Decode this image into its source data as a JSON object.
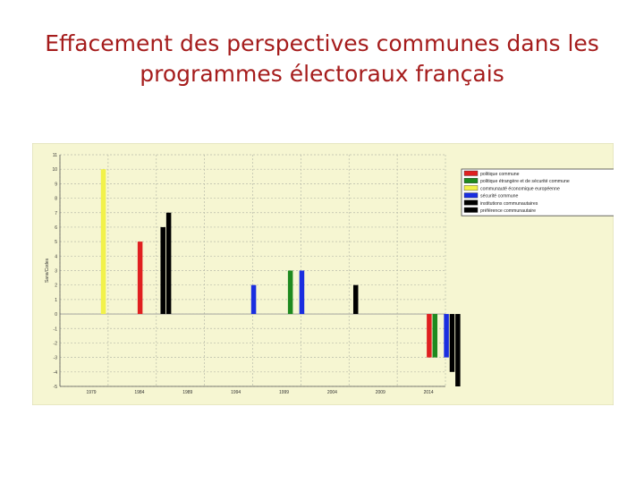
{
  "slide": {
    "title_line1": "Effacement des perspectives communes dans les",
    "title_line2": "programmes électoraux français"
  },
  "chart_data": {
    "type": "bar",
    "ylabel": "Sans/Codes",
    "xlabel": "",
    "ylim": [
      -5,
      11
    ],
    "yticks": [
      11,
      10,
      9,
      8,
      7,
      6,
      5,
      4,
      3,
      2,
      1,
      0,
      -1,
      -2,
      -3,
      -4,
      -5
    ],
    "grid": true,
    "legend_position": "top-right",
    "background_color": "#f6f6d2",
    "categories": [
      "1979",
      "1984",
      "1989",
      "1994",
      "1999",
      "2004",
      "2009",
      "2014"
    ],
    "series": [
      {
        "name": "politique commune",
        "color": "#e02020",
        "values": [
          0,
          5,
          0,
          0,
          0,
          0,
          0,
          -3
        ]
      },
      {
        "name": "politique étrangère et de sécurité commune",
        "color": "#1f8a1f",
        "values": [
          0,
          0,
          0,
          0,
          3,
          0,
          0,
          -3
        ]
      },
      {
        "name": "communauté économique européenne",
        "color": "#f2f24a",
        "values": [
          10,
          0,
          0,
          0,
          0,
          0,
          0,
          0
        ]
      },
      {
        "name": "sécurité commune",
        "color": "#1a2ee0",
        "values": [
          0,
          0,
          0,
          2,
          3,
          0,
          0,
          -3
        ]
      },
      {
        "name": "institutions communautaires",
        "color": "#000000",
        "values": [
          0,
          6,
          0,
          0,
          0,
          2,
          0,
          -4
        ]
      },
      {
        "name": "préférence communautaire",
        "color": "#000000",
        "values": [
          0,
          7,
          0,
          0,
          0,
          0,
          0,
          -5
        ]
      }
    ]
  }
}
